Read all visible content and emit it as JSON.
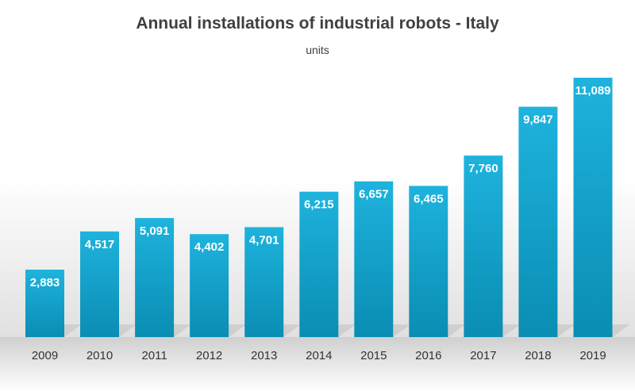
{
  "chart_data": {
    "type": "bar",
    "title": "Annual installations of industrial robots - Italy",
    "subtitle": "units",
    "xlabel": "",
    "ylabel": "",
    "categories": [
      "2009",
      "2010",
      "2011",
      "2012",
      "2013",
      "2014",
      "2015",
      "2016",
      "2017",
      "2018",
      "2019"
    ],
    "values": [
      2883,
      4517,
      5091,
      4402,
      4701,
      6215,
      6657,
      6465,
      7760,
      9847,
      11089
    ],
    "value_labels": [
      "2,883",
      "4,517",
      "5,091",
      "4,402",
      "4,701",
      "6,215",
      "6,657",
      "6,465",
      "7,760",
      "9,847",
      "11,089"
    ],
    "ylim": [
      0,
      11089
    ],
    "grid": false,
    "legend": "none",
    "colors": {
      "bar_top": "#1eb3dd",
      "bar_bottom": "#0a8db3",
      "background_fade": "#d9d9d9"
    }
  }
}
